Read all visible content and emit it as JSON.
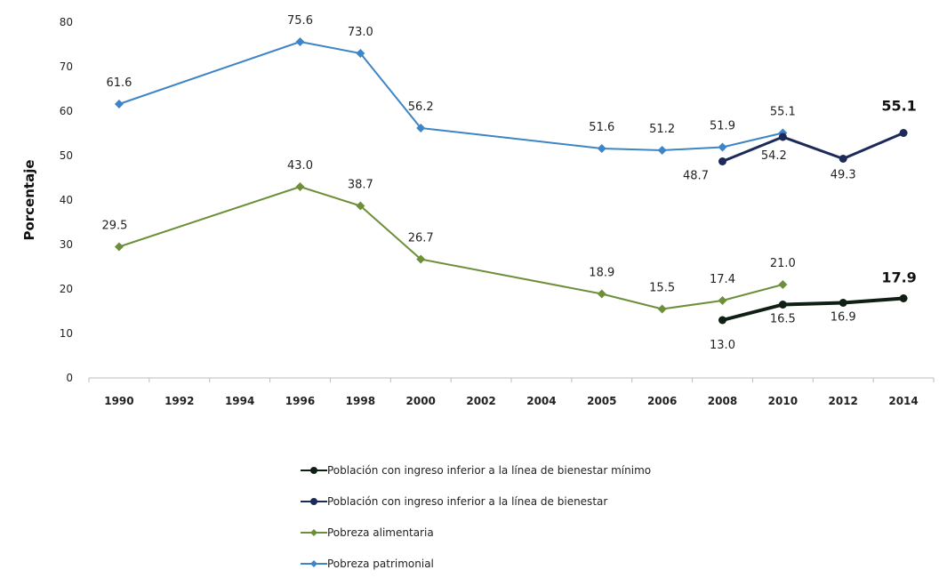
{
  "chart_data": {
    "type": "line",
    "title": "",
    "ylabel": "Porcentaje",
    "xlabel": "",
    "ylim": [
      0,
      80
    ],
    "yticks": [
      0,
      10,
      20,
      30,
      40,
      50,
      60,
      70,
      80
    ],
    "categories": [
      "1990",
      "1992",
      "1994",
      "1996",
      "1998",
      "2000",
      "2002",
      "2004",
      "2005",
      "2006",
      "2008",
      "2010",
      "2012",
      "2014"
    ],
    "legend_position": "bottom",
    "series": [
      {
        "name": "Población con ingreso inferior a la línea de bienestar mínimo",
        "color": "#0f1f14",
        "values": [
          null,
          null,
          null,
          null,
          null,
          null,
          null,
          null,
          null,
          null,
          13.0,
          16.5,
          16.9,
          17.9
        ],
        "labels": [
          "",
          "",
          "",
          "",
          "",
          "",
          "",
          "",
          "",
          "",
          "13.0",
          "16.5",
          "16.9",
          "17.9"
        ]
      },
      {
        "name": "Población con ingreso inferior a la línea de bienestar",
        "color": "#1c2a5a",
        "values": [
          null,
          null,
          null,
          null,
          null,
          null,
          null,
          null,
          null,
          null,
          48.7,
          54.2,
          49.3,
          55.1
        ],
        "labels": [
          "",
          "",
          "",
          "",
          "",
          "",
          "",
          "",
          "",
          "",
          "48.7",
          "54.2",
          "49.3",
          "55.1"
        ]
      },
      {
        "name": "Pobreza alimentaria",
        "color": "#6e8f3a",
        "values": [
          29.5,
          null,
          null,
          43.0,
          38.7,
          26.7,
          null,
          null,
          18.9,
          15.5,
          17.4,
          21.0,
          null,
          null
        ],
        "labels": [
          "29.5",
          "",
          "",
          "43.0",
          "38.7",
          "26.7",
          "",
          "",
          "18.9",
          "15.5",
          "17.4",
          "21.0",
          "",
          ""
        ]
      },
      {
        "name": "Pobreza patrimonial",
        "color": "#3d85c6",
        "values": [
          61.6,
          null,
          null,
          75.6,
          73.0,
          56.2,
          null,
          null,
          51.6,
          51.2,
          51.9,
          55.1,
          null,
          null
        ],
        "labels": [
          "61.6",
          "",
          "",
          "75.6",
          "73.0",
          "56.2",
          "",
          "",
          "51.6",
          "51.2",
          "51.9",
          "55.1",
          "",
          ""
        ]
      }
    ]
  }
}
